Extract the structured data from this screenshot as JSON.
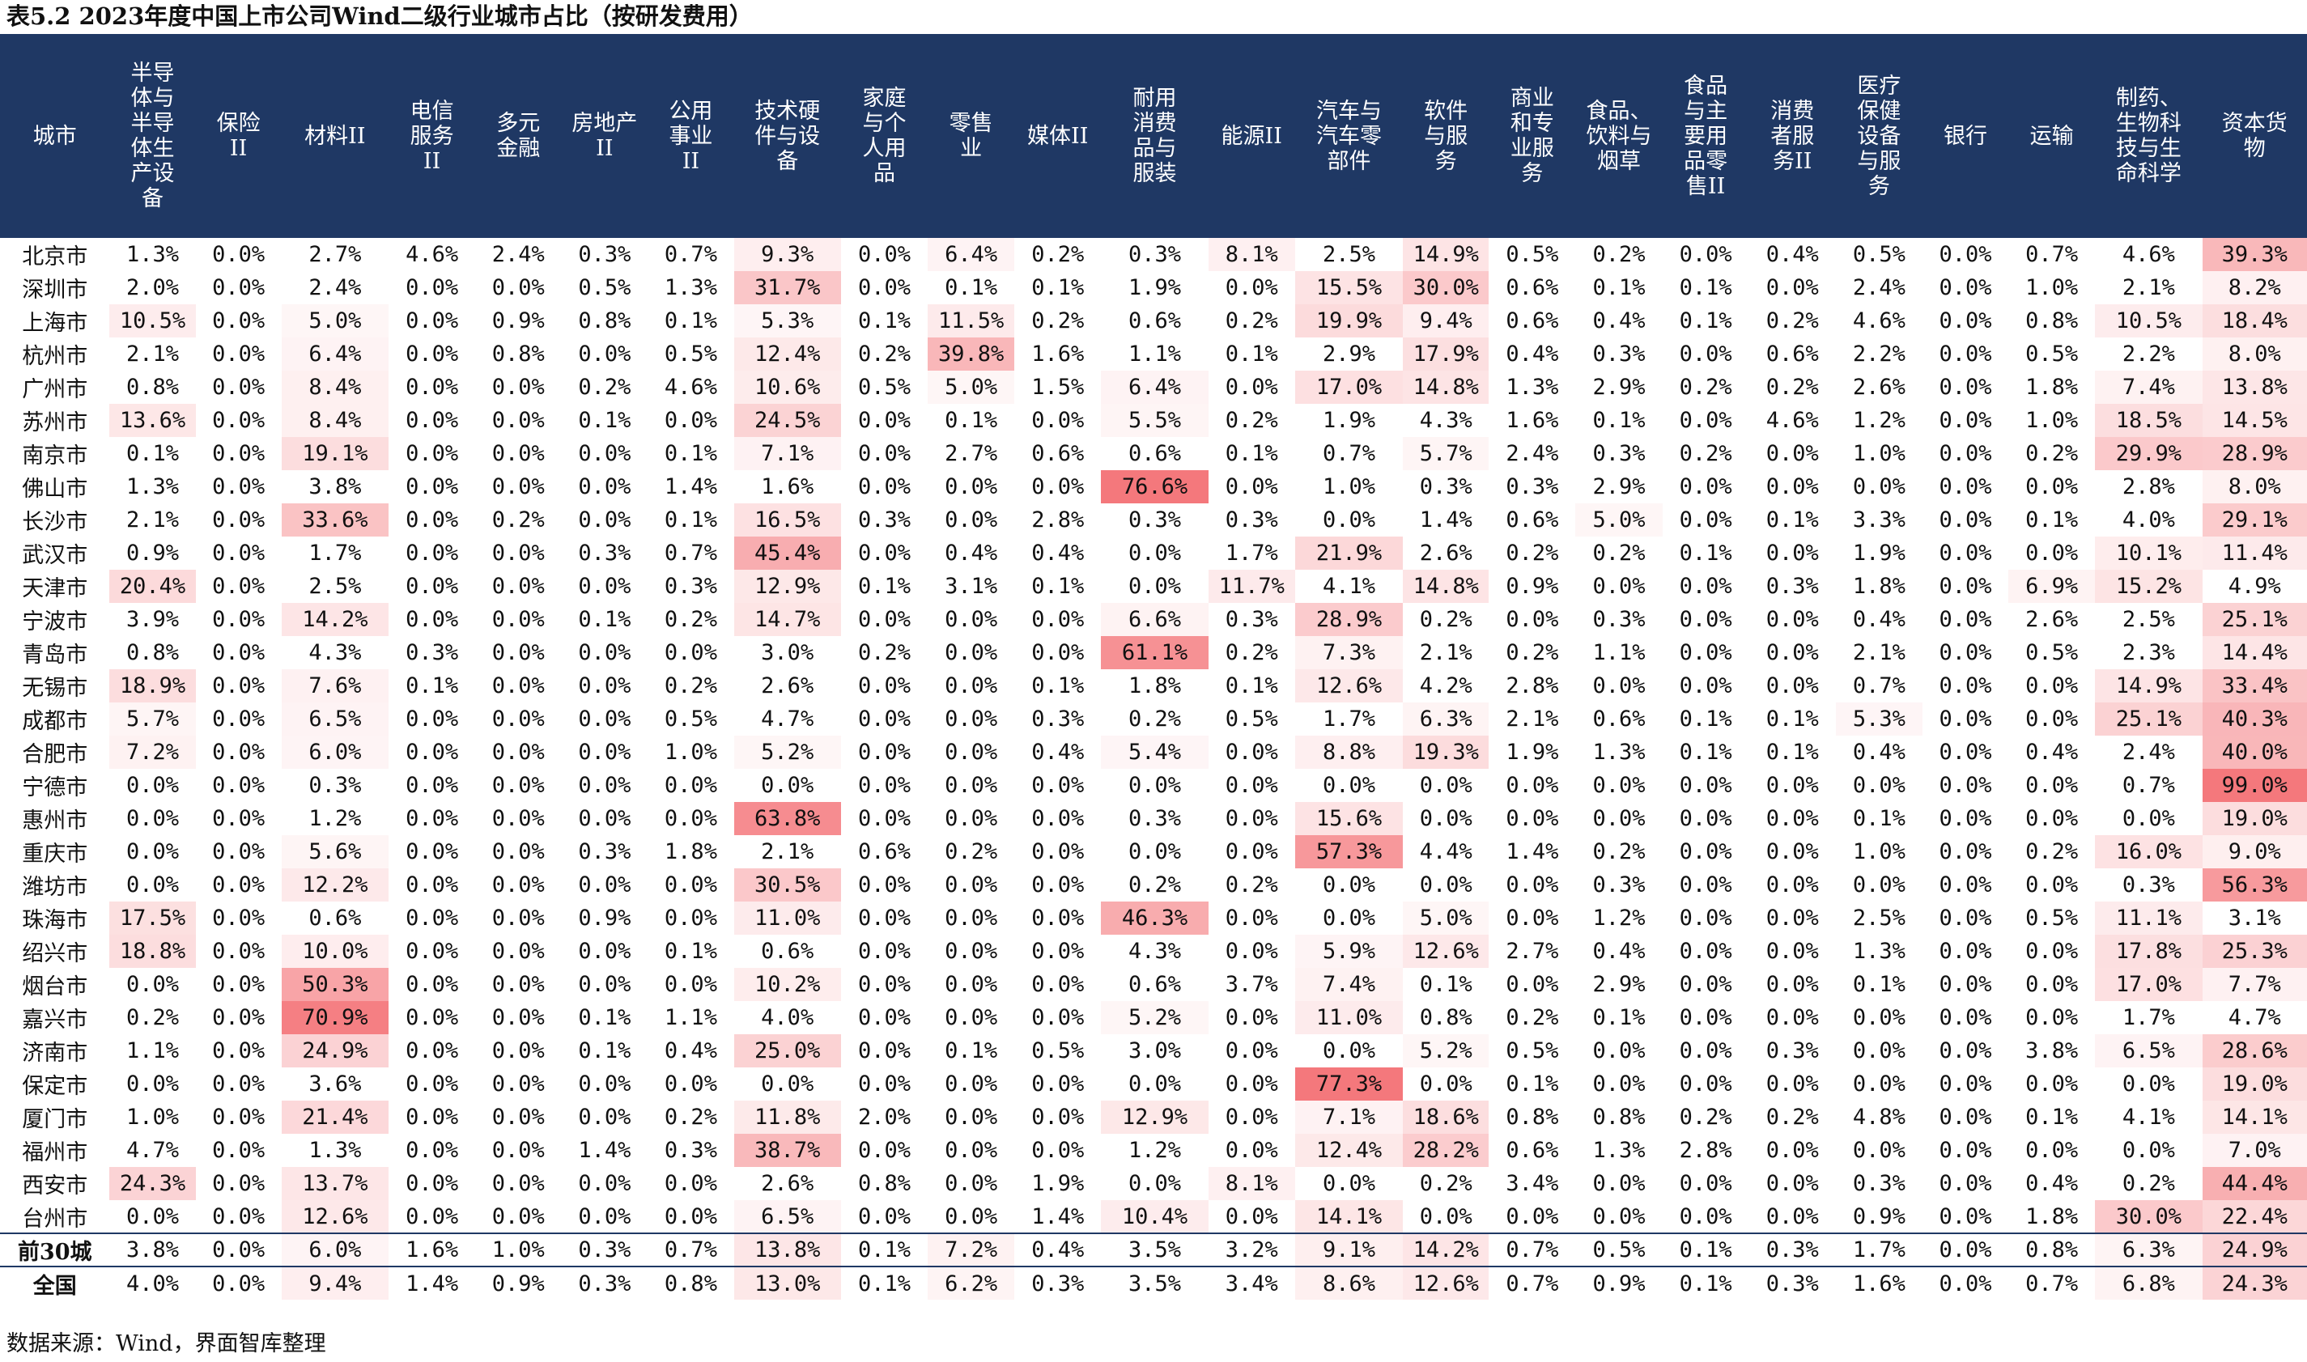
{
  "title": "表5.2 2023年度中国上市公司Wind二级行业城市占比（按研发费用）",
  "source": "数据来源：Wind，界面智库整理",
  "colors": {
    "header_bg": "#1f3864",
    "header_text": "#ffffff",
    "heat_max": "#f4787c",
    "heat_min": "#ffffff"
  },
  "columns": [
    "城市",
    "半导\n体与\n半导\n体生\n产设\n备",
    "保险\nII",
    "材料II",
    "电信\n服务\nII",
    "多元\n金融",
    "房地产\nII",
    "公用\n事业\nII",
    "技术硬\n件与设\n备",
    "家庭\n与个\n人用\n品",
    "零售\n业",
    "媒体II",
    "耐用\n消费\n品与\n服装",
    "能源II",
    "汽车与\n汽车零\n部件",
    "软件\n与服\n务",
    "商业\n和专\n业服\n务",
    "食品、\n饮料与\n烟草",
    "食品\n与主\n要用\n品零\n售II",
    "消费\n者服\n务II",
    "医疗\n保健\n设备\n与服\n务",
    "银行",
    "运输",
    "制药、\n生物科\n技与生\n命科学",
    "资本货\n物"
  ],
  "rows": [
    {
      "city": "北京市",
      "values": [
        "1.3%",
        "0.0%",
        "2.7%",
        "4.6%",
        "2.4%",
        "0.3%",
        "0.7%",
        "9.3%",
        "0.0%",
        "6.4%",
        "0.2%",
        "0.3%",
        "8.1%",
        "2.5%",
        "14.9%",
        "0.5%",
        "0.2%",
        "0.0%",
        "0.4%",
        "0.5%",
        "0.0%",
        "0.7%",
        "4.6%",
        "39.3%"
      ]
    },
    {
      "city": "深圳市",
      "values": [
        "2.0%",
        "0.0%",
        "2.4%",
        "0.0%",
        "0.0%",
        "0.5%",
        "1.3%",
        "31.7%",
        "0.0%",
        "0.1%",
        "0.1%",
        "1.9%",
        "0.0%",
        "15.5%",
        "30.0%",
        "0.6%",
        "0.1%",
        "0.1%",
        "0.0%",
        "2.4%",
        "0.0%",
        "1.0%",
        "2.1%",
        "8.2%"
      ]
    },
    {
      "city": "上海市",
      "values": [
        "10.5%",
        "0.0%",
        "5.0%",
        "0.0%",
        "0.9%",
        "0.8%",
        "0.1%",
        "5.3%",
        "0.1%",
        "11.5%",
        "0.2%",
        "0.6%",
        "0.2%",
        "19.9%",
        "9.4%",
        "0.6%",
        "0.4%",
        "0.1%",
        "0.2%",
        "4.6%",
        "0.0%",
        "0.8%",
        "10.5%",
        "18.4%"
      ]
    },
    {
      "city": "杭州市",
      "values": [
        "2.1%",
        "0.0%",
        "6.4%",
        "0.0%",
        "0.8%",
        "0.0%",
        "0.5%",
        "12.4%",
        "0.2%",
        "39.8%",
        "1.6%",
        "1.1%",
        "0.1%",
        "2.9%",
        "17.9%",
        "0.4%",
        "0.3%",
        "0.0%",
        "0.6%",
        "2.2%",
        "0.0%",
        "0.5%",
        "2.2%",
        "8.0%"
      ]
    },
    {
      "city": "广州市",
      "values": [
        "0.8%",
        "0.0%",
        "8.4%",
        "0.0%",
        "0.0%",
        "0.2%",
        "4.6%",
        "10.6%",
        "0.5%",
        "5.0%",
        "1.5%",
        "6.4%",
        "0.0%",
        "17.0%",
        "14.8%",
        "1.3%",
        "2.9%",
        "0.2%",
        "0.2%",
        "2.6%",
        "0.0%",
        "1.8%",
        "7.4%",
        "13.8%"
      ]
    },
    {
      "city": "苏州市",
      "values": [
        "13.6%",
        "0.0%",
        "8.4%",
        "0.0%",
        "0.0%",
        "0.1%",
        "0.0%",
        "24.5%",
        "0.0%",
        "0.1%",
        "0.0%",
        "5.5%",
        "0.2%",
        "1.9%",
        "4.3%",
        "1.6%",
        "0.1%",
        "0.0%",
        "4.6%",
        "1.2%",
        "0.0%",
        "1.0%",
        "18.5%",
        "14.5%"
      ]
    },
    {
      "city": "南京市",
      "values": [
        "0.1%",
        "0.0%",
        "19.1%",
        "0.0%",
        "0.0%",
        "0.0%",
        "0.1%",
        "7.1%",
        "0.0%",
        "2.7%",
        "0.6%",
        "0.6%",
        "0.1%",
        "0.7%",
        "5.7%",
        "2.4%",
        "0.3%",
        "0.2%",
        "0.0%",
        "1.0%",
        "0.0%",
        "0.2%",
        "29.9%",
        "28.9%"
      ]
    },
    {
      "city": "佛山市",
      "values": [
        "1.3%",
        "0.0%",
        "3.8%",
        "0.0%",
        "0.0%",
        "0.0%",
        "1.4%",
        "1.6%",
        "0.0%",
        "0.0%",
        "0.0%",
        "76.6%",
        "0.0%",
        "1.0%",
        "0.3%",
        "0.3%",
        "2.9%",
        "0.0%",
        "0.0%",
        "0.0%",
        "0.0%",
        "0.0%",
        "2.8%",
        "8.0%"
      ]
    },
    {
      "city": "长沙市",
      "values": [
        "2.1%",
        "0.0%",
        "33.6%",
        "0.0%",
        "0.2%",
        "0.0%",
        "0.1%",
        "16.5%",
        "0.3%",
        "0.0%",
        "2.8%",
        "0.3%",
        "0.3%",
        "0.0%",
        "1.4%",
        "0.6%",
        "5.0%",
        "0.0%",
        "0.1%",
        "3.3%",
        "0.0%",
        "0.1%",
        "4.0%",
        "29.1%"
      ]
    },
    {
      "city": "武汉市",
      "values": [
        "0.9%",
        "0.0%",
        "1.7%",
        "0.0%",
        "0.0%",
        "0.3%",
        "0.7%",
        "45.4%",
        "0.0%",
        "0.4%",
        "0.4%",
        "0.0%",
        "1.7%",
        "21.9%",
        "2.6%",
        "0.2%",
        "0.2%",
        "0.1%",
        "0.0%",
        "1.9%",
        "0.0%",
        "0.0%",
        "10.1%",
        "11.4%"
      ]
    },
    {
      "city": "天津市",
      "values": [
        "20.4%",
        "0.0%",
        "2.5%",
        "0.0%",
        "0.0%",
        "0.0%",
        "0.3%",
        "12.9%",
        "0.1%",
        "3.1%",
        "0.1%",
        "0.0%",
        "11.7%",
        "4.1%",
        "14.8%",
        "0.9%",
        "0.0%",
        "0.0%",
        "0.3%",
        "1.8%",
        "0.0%",
        "6.9%",
        "15.2%",
        "4.9%"
      ]
    },
    {
      "city": "宁波市",
      "values": [
        "3.9%",
        "0.0%",
        "14.2%",
        "0.0%",
        "0.0%",
        "0.1%",
        "0.2%",
        "14.7%",
        "0.0%",
        "0.0%",
        "0.0%",
        "6.6%",
        "0.3%",
        "28.9%",
        "0.2%",
        "0.0%",
        "0.3%",
        "0.0%",
        "0.0%",
        "0.4%",
        "0.0%",
        "2.6%",
        "2.5%",
        "25.1%"
      ]
    },
    {
      "city": "青岛市",
      "values": [
        "0.8%",
        "0.0%",
        "4.3%",
        "0.3%",
        "0.0%",
        "0.0%",
        "0.0%",
        "3.0%",
        "0.2%",
        "0.0%",
        "0.0%",
        "61.1%",
        "0.2%",
        "7.3%",
        "2.1%",
        "0.2%",
        "1.1%",
        "0.0%",
        "0.0%",
        "2.1%",
        "0.0%",
        "0.5%",
        "2.3%",
        "14.4%"
      ]
    },
    {
      "city": "无锡市",
      "values": [
        "18.9%",
        "0.0%",
        "7.6%",
        "0.1%",
        "0.0%",
        "0.0%",
        "0.2%",
        "2.6%",
        "0.0%",
        "0.0%",
        "0.1%",
        "1.8%",
        "0.1%",
        "12.6%",
        "4.2%",
        "2.8%",
        "0.0%",
        "0.0%",
        "0.0%",
        "0.7%",
        "0.0%",
        "0.0%",
        "14.9%",
        "33.4%"
      ]
    },
    {
      "city": "成都市",
      "values": [
        "5.7%",
        "0.0%",
        "6.5%",
        "0.0%",
        "0.0%",
        "0.0%",
        "0.5%",
        "4.7%",
        "0.0%",
        "0.0%",
        "0.3%",
        "0.2%",
        "0.5%",
        "1.7%",
        "6.3%",
        "2.1%",
        "0.6%",
        "0.1%",
        "0.1%",
        "5.3%",
        "0.0%",
        "0.0%",
        "25.1%",
        "40.3%"
      ]
    },
    {
      "city": "合肥市",
      "values": [
        "7.2%",
        "0.0%",
        "6.0%",
        "0.0%",
        "0.0%",
        "0.0%",
        "1.0%",
        "5.2%",
        "0.0%",
        "0.0%",
        "0.4%",
        "5.4%",
        "0.0%",
        "8.8%",
        "19.3%",
        "1.9%",
        "1.3%",
        "0.1%",
        "0.1%",
        "0.4%",
        "0.0%",
        "0.4%",
        "2.4%",
        "40.0%"
      ]
    },
    {
      "city": "宁德市",
      "values": [
        "0.0%",
        "0.0%",
        "0.3%",
        "0.0%",
        "0.0%",
        "0.0%",
        "0.0%",
        "0.0%",
        "0.0%",
        "0.0%",
        "0.0%",
        "0.0%",
        "0.0%",
        "0.0%",
        "0.0%",
        "0.0%",
        "0.0%",
        "0.0%",
        "0.0%",
        "0.0%",
        "0.0%",
        "0.0%",
        "0.7%",
        "99.0%"
      ]
    },
    {
      "city": "惠州市",
      "values": [
        "0.0%",
        "0.0%",
        "1.2%",
        "0.0%",
        "0.0%",
        "0.0%",
        "0.0%",
        "63.8%",
        "0.0%",
        "0.0%",
        "0.0%",
        "0.3%",
        "0.0%",
        "15.6%",
        "0.0%",
        "0.0%",
        "0.0%",
        "0.0%",
        "0.0%",
        "0.1%",
        "0.0%",
        "0.0%",
        "0.0%",
        "19.0%"
      ]
    },
    {
      "city": "重庆市",
      "values": [
        "0.0%",
        "0.0%",
        "5.6%",
        "0.0%",
        "0.0%",
        "0.3%",
        "1.8%",
        "2.1%",
        "0.6%",
        "0.2%",
        "0.0%",
        "0.0%",
        "0.0%",
        "57.3%",
        "4.4%",
        "1.4%",
        "0.2%",
        "0.0%",
        "0.0%",
        "1.0%",
        "0.0%",
        "0.2%",
        "16.0%",
        "9.0%"
      ]
    },
    {
      "city": "潍坊市",
      "values": [
        "0.0%",
        "0.0%",
        "12.2%",
        "0.0%",
        "0.0%",
        "0.0%",
        "0.0%",
        "30.5%",
        "0.0%",
        "0.0%",
        "0.0%",
        "0.2%",
        "0.2%",
        "0.0%",
        "0.0%",
        "0.0%",
        "0.3%",
        "0.0%",
        "0.0%",
        "0.0%",
        "0.0%",
        "0.0%",
        "0.3%",
        "56.3%"
      ]
    },
    {
      "city": "珠海市",
      "values": [
        "17.5%",
        "0.0%",
        "0.6%",
        "0.0%",
        "0.0%",
        "0.9%",
        "0.0%",
        "11.0%",
        "0.0%",
        "0.0%",
        "0.0%",
        "46.3%",
        "0.0%",
        "0.0%",
        "5.0%",
        "0.0%",
        "1.2%",
        "0.0%",
        "0.0%",
        "2.5%",
        "0.0%",
        "0.5%",
        "11.1%",
        "3.1%"
      ]
    },
    {
      "city": "绍兴市",
      "values": [
        "18.8%",
        "0.0%",
        "10.0%",
        "0.0%",
        "0.0%",
        "0.0%",
        "0.1%",
        "0.6%",
        "0.0%",
        "0.0%",
        "0.0%",
        "4.3%",
        "0.0%",
        "5.9%",
        "12.6%",
        "2.7%",
        "0.4%",
        "0.0%",
        "0.0%",
        "1.3%",
        "0.0%",
        "0.0%",
        "17.8%",
        "25.3%"
      ]
    },
    {
      "city": "烟台市",
      "values": [
        "0.0%",
        "0.0%",
        "50.3%",
        "0.0%",
        "0.0%",
        "0.0%",
        "0.0%",
        "10.2%",
        "0.0%",
        "0.0%",
        "0.0%",
        "0.6%",
        "3.7%",
        "7.4%",
        "0.1%",
        "0.0%",
        "2.9%",
        "0.0%",
        "0.0%",
        "0.1%",
        "0.0%",
        "0.0%",
        "17.0%",
        "7.7%"
      ]
    },
    {
      "city": "嘉兴市",
      "values": [
        "0.2%",
        "0.0%",
        "70.9%",
        "0.0%",
        "0.0%",
        "0.1%",
        "1.1%",
        "4.0%",
        "0.0%",
        "0.0%",
        "0.0%",
        "5.2%",
        "0.0%",
        "11.0%",
        "0.8%",
        "0.2%",
        "0.1%",
        "0.0%",
        "0.0%",
        "0.0%",
        "0.0%",
        "0.0%",
        "1.7%",
        "4.7%"
      ]
    },
    {
      "city": "济南市",
      "values": [
        "1.1%",
        "0.0%",
        "24.9%",
        "0.0%",
        "0.0%",
        "0.1%",
        "0.4%",
        "25.0%",
        "0.0%",
        "0.1%",
        "0.5%",
        "3.0%",
        "0.0%",
        "0.0%",
        "5.2%",
        "0.5%",
        "0.0%",
        "0.0%",
        "0.3%",
        "0.0%",
        "0.0%",
        "3.8%",
        "6.5%",
        "28.6%"
      ]
    },
    {
      "city": "保定市",
      "values": [
        "0.0%",
        "0.0%",
        "3.6%",
        "0.0%",
        "0.0%",
        "0.0%",
        "0.0%",
        "0.0%",
        "0.0%",
        "0.0%",
        "0.0%",
        "0.0%",
        "0.0%",
        "77.3%",
        "0.0%",
        "0.1%",
        "0.0%",
        "0.0%",
        "0.0%",
        "0.0%",
        "0.0%",
        "0.0%",
        "0.0%",
        "19.0%"
      ]
    },
    {
      "city": "厦门市",
      "values": [
        "1.0%",
        "0.0%",
        "21.4%",
        "0.0%",
        "0.0%",
        "0.0%",
        "0.2%",
        "11.8%",
        "2.0%",
        "0.0%",
        "0.0%",
        "12.9%",
        "0.0%",
        "7.1%",
        "18.6%",
        "0.8%",
        "0.8%",
        "0.2%",
        "0.2%",
        "4.8%",
        "0.0%",
        "0.1%",
        "4.1%",
        "14.1%"
      ]
    },
    {
      "city": "福州市",
      "values": [
        "4.7%",
        "0.0%",
        "1.3%",
        "0.0%",
        "0.0%",
        "1.4%",
        "0.3%",
        "38.7%",
        "0.0%",
        "0.0%",
        "0.0%",
        "1.2%",
        "0.0%",
        "12.4%",
        "28.2%",
        "0.6%",
        "1.3%",
        "2.8%",
        "0.0%",
        "0.0%",
        "0.0%",
        "0.0%",
        "0.0%",
        "7.0%"
      ]
    },
    {
      "city": "西安市",
      "values": [
        "24.3%",
        "0.0%",
        "13.7%",
        "0.0%",
        "0.0%",
        "0.0%",
        "0.0%",
        "2.6%",
        "0.8%",
        "0.0%",
        "1.9%",
        "0.0%",
        "8.1%",
        "0.0%",
        "0.2%",
        "3.4%",
        "0.0%",
        "0.0%",
        "0.0%",
        "0.3%",
        "0.0%",
        "0.4%",
        "0.2%",
        "44.4%"
      ]
    },
    {
      "city": "台州市",
      "values": [
        "0.0%",
        "0.0%",
        "12.6%",
        "0.0%",
        "0.0%",
        "0.0%",
        "0.0%",
        "6.5%",
        "0.0%",
        "0.0%",
        "1.4%",
        "10.4%",
        "0.0%",
        "14.1%",
        "0.0%",
        "0.0%",
        "0.0%",
        "0.0%",
        "0.0%",
        "0.9%",
        "0.0%",
        "1.8%",
        "30.0%",
        "22.4%"
      ]
    },
    {
      "city": "前30城",
      "summary": true,
      "values": [
        "3.8%",
        "0.0%",
        "6.0%",
        "1.6%",
        "1.0%",
        "0.3%",
        "0.7%",
        "13.8%",
        "0.1%",
        "7.2%",
        "0.4%",
        "3.5%",
        "3.2%",
        "9.1%",
        "14.2%",
        "0.7%",
        "0.5%",
        "0.1%",
        "0.3%",
        "1.7%",
        "0.0%",
        "0.8%",
        "6.3%",
        "24.9%"
      ]
    },
    {
      "city": "全国",
      "summary": true,
      "values": [
        "4.0%",
        "0.0%",
        "9.4%",
        "1.4%",
        "0.9%",
        "0.3%",
        "0.8%",
        "13.0%",
        "0.1%",
        "6.2%",
        "0.3%",
        "3.5%",
        "3.4%",
        "8.6%",
        "12.6%",
        "0.7%",
        "0.9%",
        "0.1%",
        "0.3%",
        "1.6%",
        "0.0%",
        "0.7%",
        "6.8%",
        "24.3%"
      ]
    }
  ]
}
